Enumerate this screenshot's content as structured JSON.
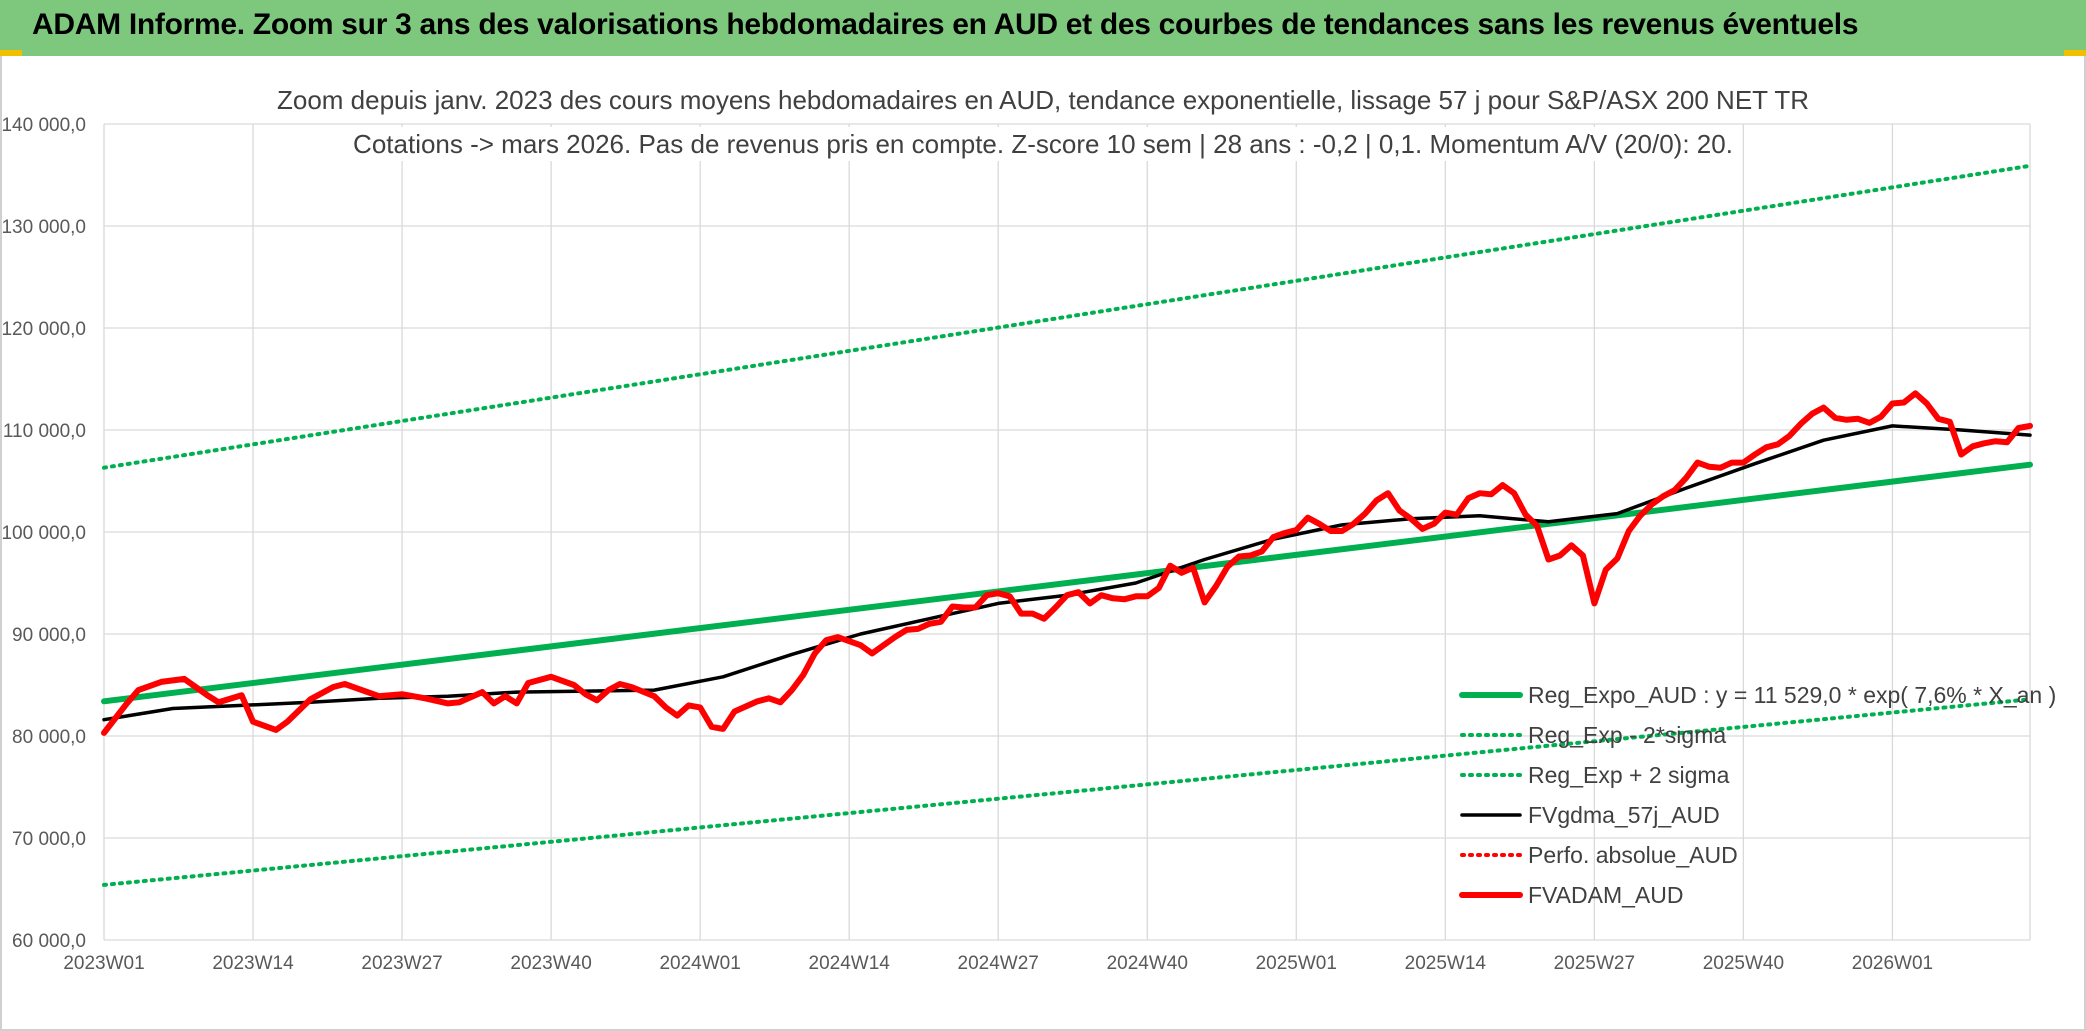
{
  "banner": {
    "title": "ADAM Informe. Zoom sur 3 ans des valorisations hebdomadaires en AUD et des courbes de tendances sans les revenus éventuels"
  },
  "colors": {
    "banner_bg": "#7ec87e",
    "trend": "#00b050",
    "smooth": "#000000",
    "price": "#ff0000"
  },
  "chart_data": {
    "type": "line",
    "title_line1": "Zoom depuis janv. 2023 des cours moyens hebdomadaires en AUD, tendance exponentielle, lissage 57 j pour S&P/ASX 200 NET TR",
    "title_line2": "Cotations -> mars 2026. Pas de revenus pris en compte. Z-score 10 sem | 28 ans : -0,2 | 0,1. Momentum A/V (20/0): 20.",
    "ylim": [
      60000,
      140000
    ],
    "y_ticks": [
      "60 000,0",
      "70 000,0",
      "80 000,0",
      "90 000,0",
      "100 000,0",
      "110 000,0",
      "120 000,0",
      "130 000,0",
      "140 000,0"
    ],
    "x_ticks": [
      "2023W01",
      "2023W14",
      "2023W27",
      "2023W40",
      "2024W01",
      "2024W14",
      "2024W27",
      "2024W40",
      "2025W01",
      "2025W14",
      "2025W27",
      "2025W40",
      "2026W01"
    ],
    "grid": true,
    "legend_position": "bottom-right",
    "series": [
      {
        "name": "Reg_Expo_AUD : y = 11 529,0 * exp( 7,6% * X_an )",
        "style": "solid-thick",
        "color": "#00b050",
        "points": [
          [
            0,
            83400
          ],
          [
            168,
            106600
          ]
        ]
      },
      {
        "name": "Reg_Exp - 2*sigma",
        "style": "dotted",
        "color": "#00b050",
        "points": [
          [
            0,
            65400
          ],
          [
            168,
            83600
          ]
        ]
      },
      {
        "name": "Reg_Exp + 2 sigma",
        "style": "dotted",
        "color": "#00b050",
        "points": [
          [
            0,
            106300
          ],
          [
            168,
            135900
          ]
        ]
      },
      {
        "name": "FVgdma_57j_AUD",
        "style": "solid",
        "color": "#000000",
        "points": [
          [
            0,
            81600
          ],
          [
            6,
            82700
          ],
          [
            12,
            83000
          ],
          [
            18,
            83300
          ],
          [
            24,
            83700
          ],
          [
            30,
            83900
          ],
          [
            36,
            84300
          ],
          [
            42,
            84400
          ],
          [
            48,
            84500
          ],
          [
            54,
            85800
          ],
          [
            60,
            88000
          ],
          [
            66,
            90000
          ],
          [
            72,
            91500
          ],
          [
            78,
            93000
          ],
          [
            84,
            93800
          ],
          [
            90,
            95000
          ],
          [
            96,
            97300
          ],
          [
            102,
            99300
          ],
          [
            108,
            100700
          ],
          [
            114,
            101300
          ],
          [
            120,
            101600
          ],
          [
            126,
            101000
          ],
          [
            132,
            101800
          ],
          [
            138,
            104300
          ],
          [
            144,
            106700
          ],
          [
            150,
            109000
          ],
          [
            156,
            110400
          ],
          [
            162,
            110000
          ],
          [
            168,
            109500
          ]
        ]
      },
      {
        "name": "Perfo. absolue_AUD",
        "style": "dotted",
        "color": "#ff0000",
        "points": []
      },
      {
        "name": "FVADAM_AUD",
        "style": "solid-thick",
        "color": "#ff0000",
        "points": [
          [
            0,
            80300
          ],
          [
            2,
            83200
          ],
          [
            3,
            84500
          ],
          [
            5,
            85300
          ],
          [
            7,
            85600
          ],
          [
            8,
            84800
          ],
          [
            9,
            84000
          ],
          [
            10,
            83300
          ],
          [
            12,
            84000
          ],
          [
            13,
            81400
          ],
          [
            15,
            80600
          ],
          [
            16,
            81400
          ],
          [
            18,
            83600
          ],
          [
            20,
            84800
          ],
          [
            21,
            85100
          ],
          [
            22,
            84700
          ],
          [
            24,
            83900
          ],
          [
            26,
            84100
          ],
          [
            28,
            83700
          ],
          [
            30,
            83200
          ],
          [
            31,
            83300
          ],
          [
            33,
            84300
          ],
          [
            34,
            83200
          ],
          [
            35,
            83900
          ],
          [
            36,
            83200
          ],
          [
            37,
            85200
          ],
          [
            39,
            85800
          ],
          [
            41,
            85000
          ],
          [
            42,
            84100
          ],
          [
            43,
            83500
          ],
          [
            44,
            84500
          ],
          [
            45,
            85100
          ],
          [
            46,
            84800
          ],
          [
            48,
            83900
          ],
          [
            49,
            82800
          ],
          [
            50,
            82000
          ],
          [
            51,
            83000
          ],
          [
            52,
            82800
          ],
          [
            53,
            80900
          ],
          [
            54,
            80700
          ],
          [
            55,
            82400
          ],
          [
            57,
            83400
          ],
          [
            58,
            83700
          ],
          [
            59,
            83300
          ],
          [
            60,
            84500
          ],
          [
            61,
            86000
          ],
          [
            62,
            88100
          ],
          [
            63,
            89400
          ],
          [
            64,
            89700
          ],
          [
            66,
            88900
          ],
          [
            67,
            88100
          ],
          [
            68,
            88900
          ],
          [
            69,
            89700
          ],
          [
            70,
            90400
          ],
          [
            71,
            90500
          ],
          [
            72,
            91000
          ],
          [
            73,
            91200
          ],
          [
            74,
            92700
          ],
          [
            75,
            92600
          ],
          [
            76,
            92600
          ],
          [
            77,
            93800
          ],
          [
            78,
            94000
          ],
          [
            79,
            93700
          ],
          [
            80,
            92000
          ],
          [
            81,
            92000
          ],
          [
            82,
            91500
          ],
          [
            83,
            92600
          ],
          [
            84,
            93800
          ],
          [
            85,
            94100
          ],
          [
            86,
            93000
          ],
          [
            87,
            93800
          ],
          [
            88,
            93500
          ],
          [
            89,
            93400
          ],
          [
            90,
            93700
          ],
          [
            91,
            93700
          ],
          [
            92,
            94500
          ],
          [
            93,
            96700
          ],
          [
            94,
            96000
          ],
          [
            95,
            96500
          ],
          [
            96,
            93100
          ],
          [
            97,
            94700
          ],
          [
            98,
            96600
          ],
          [
            99,
            97600
          ],
          [
            100,
            97700
          ],
          [
            101,
            98100
          ],
          [
            102,
            99500
          ],
          [
            103,
            99900
          ],
          [
            104,
            100200
          ],
          [
            105,
            101400
          ],
          [
            106,
            100800
          ],
          [
            107,
            100100
          ],
          [
            108,
            100100
          ],
          [
            109,
            100800
          ],
          [
            110,
            101800
          ],
          [
            111,
            103100
          ],
          [
            112,
            103800
          ],
          [
            113,
            102100
          ],
          [
            114,
            101300
          ],
          [
            115,
            100300
          ],
          [
            116,
            100800
          ],
          [
            117,
            101900
          ],
          [
            118,
            101700
          ],
          [
            119,
            103300
          ],
          [
            120,
            103800
          ],
          [
            121,
            103700
          ],
          [
            122,
            104600
          ],
          [
            123,
            103800
          ],
          [
            124,
            101700
          ],
          [
            125,
            100600
          ],
          [
            126,
            97300
          ],
          [
            127,
            97700
          ],
          [
            128,
            98700
          ],
          [
            129,
            97700
          ],
          [
            130,
            93000
          ],
          [
            131,
            96300
          ],
          [
            132,
            97400
          ],
          [
            133,
            100100
          ],
          [
            134,
            101600
          ],
          [
            135,
            102700
          ],
          [
            136,
            103500
          ],
          [
            137,
            104100
          ],
          [
            138,
            105300
          ],
          [
            139,
            106800
          ],
          [
            140,
            106400
          ],
          [
            141,
            106300
          ],
          [
            142,
            106800
          ],
          [
            143,
            106800
          ],
          [
            144,
            107600
          ],
          [
            145,
            108300
          ],
          [
            146,
            108600
          ],
          [
            147,
            109400
          ],
          [
            148,
            110600
          ],
          [
            149,
            111600
          ],
          [
            150,
            112200
          ],
          [
            151,
            111200
          ],
          [
            152,
            111000
          ],
          [
            153,
            111100
          ],
          [
            154,
            110700
          ],
          [
            155,
            111300
          ],
          [
            156,
            112600
          ],
          [
            157,
            112700
          ],
          [
            158,
            113600
          ],
          [
            159,
            112600
          ],
          [
            160,
            111100
          ],
          [
            161,
            110800
          ],
          [
            162,
            107600
          ],
          [
            163,
            108400
          ],
          [
            164,
            108700
          ],
          [
            165,
            108900
          ],
          [
            166,
            108800
          ],
          [
            167,
            110200
          ],
          [
            168,
            110400
          ]
        ]
      }
    ]
  }
}
